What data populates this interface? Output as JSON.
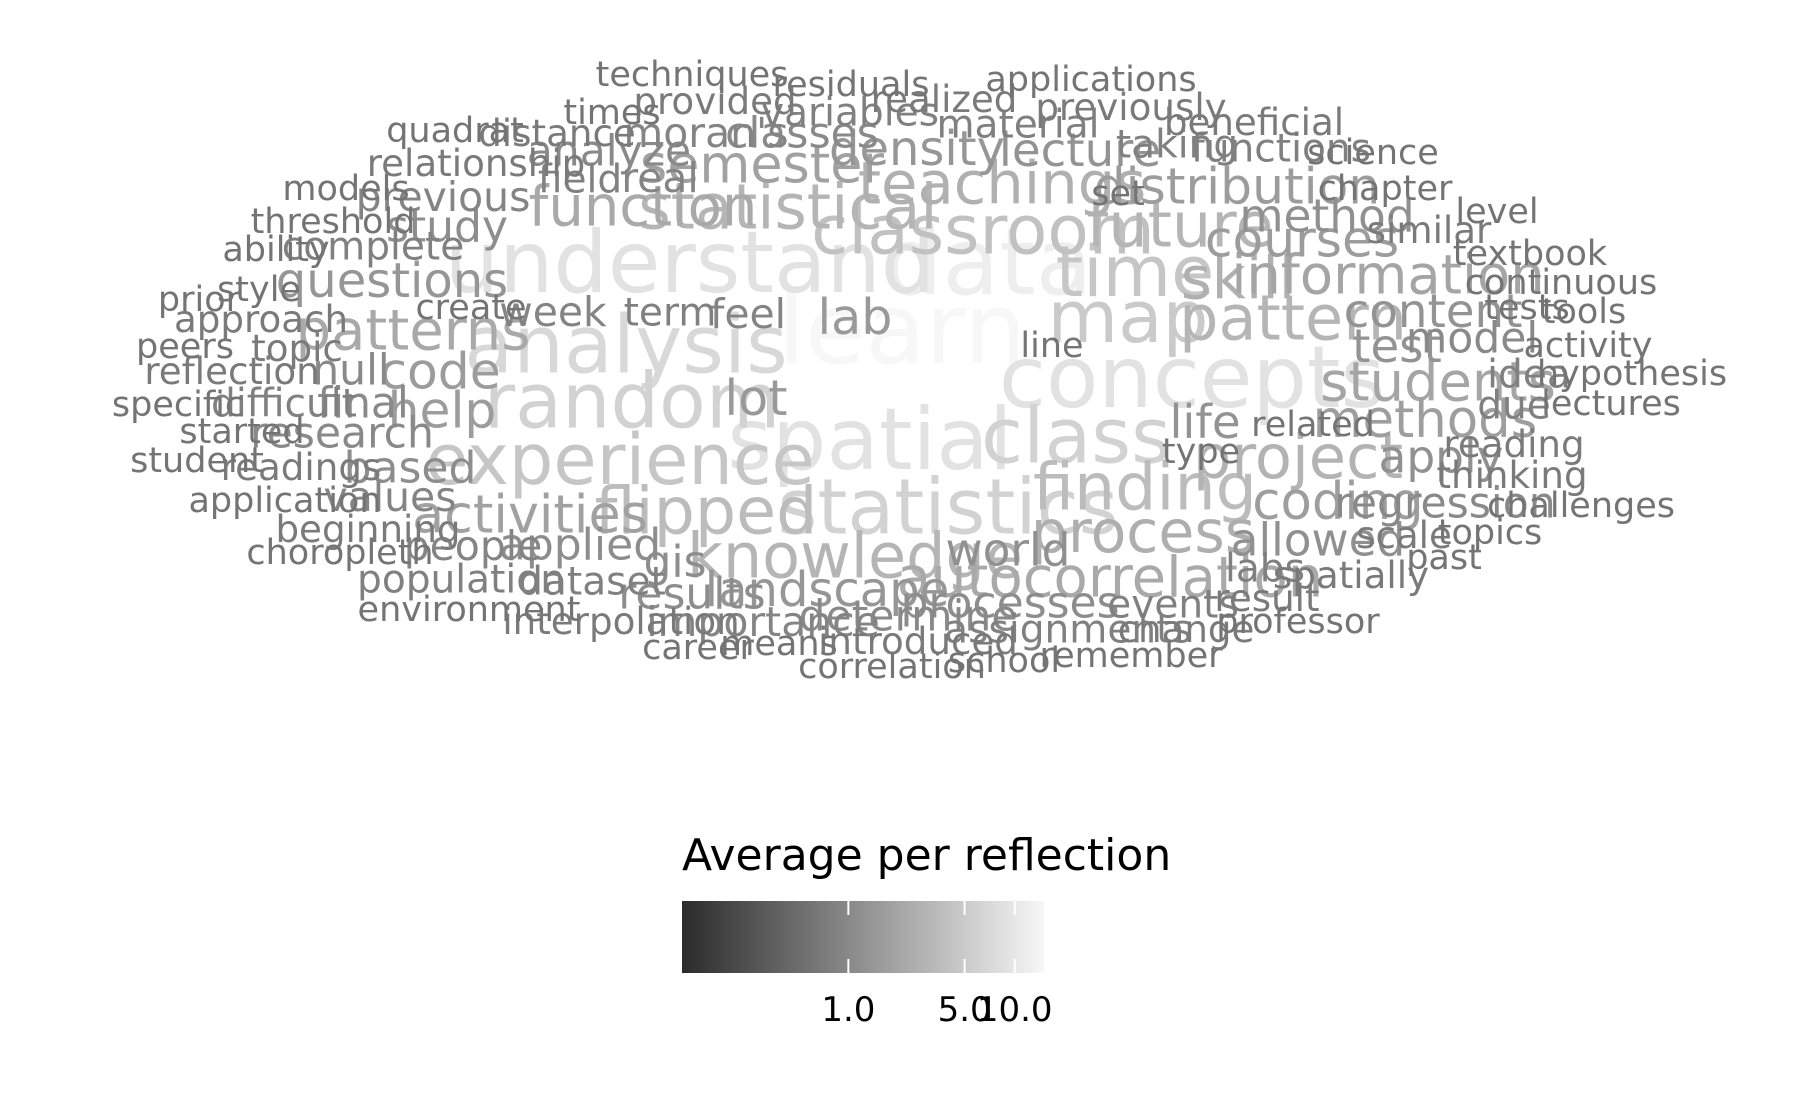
{
  "chart_data": {
    "type": "wordcloud",
    "legend": {
      "title": "Average per reflection",
      "scale": "log",
      "range": [
        0.1,
        15
      ],
      "colors": {
        "low": "#2b2b2b",
        "high": "#f7f7f7"
      },
      "ticks": [
        {
          "value": 1.0,
          "label": "1.0"
        },
        {
          "value": 5.0,
          "label": "5.0"
        },
        {
          "value": 10.0,
          "label": "10.0"
        }
      ]
    },
    "words": [
      {
        "text": "learn",
        "value": 15
      },
      {
        "text": "data",
        "value": 12
      },
      {
        "text": "understand",
        "value": 9
      },
      {
        "text": "concepts",
        "value": 9
      },
      {
        "text": "spatial",
        "value": 9
      },
      {
        "text": "analysis",
        "value": 7
      },
      {
        "text": "random",
        "value": 6
      },
      {
        "text": "class",
        "value": 6
      },
      {
        "text": "statistics",
        "value": 6
      },
      {
        "text": "map",
        "value": 5
      },
      {
        "text": "experience",
        "value": 4.5
      },
      {
        "text": "time",
        "value": 4.5
      },
      {
        "text": "classroom",
        "value": 4
      },
      {
        "text": "finding",
        "value": 3.5
      },
      {
        "text": "flipped",
        "value": 3.5
      },
      {
        "text": "knowledge",
        "value": 3
      },
      {
        "text": "pattern",
        "value": 3
      },
      {
        "text": "future",
        "value": 3
      },
      {
        "text": "statistical",
        "value": 3
      },
      {
        "text": "project",
        "value": 2.8
      },
      {
        "text": "skill",
        "value": 2.6
      },
      {
        "text": "teachings",
        "value": 2.6
      },
      {
        "text": "process",
        "value": 2.5
      },
      {
        "text": "function",
        "value": 2.2
      },
      {
        "text": "patterns",
        "value": 2.2
      },
      {
        "text": "autocorrelation",
        "value": 2.2
      },
      {
        "text": "information",
        "value": 2
      },
      {
        "text": "students",
        "value": 2
      },
      {
        "text": "activities",
        "value": 1.8
      },
      {
        "text": "semester",
        "value": 1.8
      },
      {
        "text": "methods",
        "value": 1.7
      },
      {
        "text": "coding",
        "value": 1.7
      },
      {
        "text": "help",
        "value": 1.6
      },
      {
        "text": "code",
        "value": 1.6
      },
      {
        "text": "distribution",
        "value": 1.6
      },
      {
        "text": "courses",
        "value": 1.6
      },
      {
        "text": "lab",
        "value": 1.5
      },
      {
        "text": "lot",
        "value": 1.5
      },
      {
        "text": "landscape",
        "value": 1.4
      },
      {
        "text": "questions",
        "value": 1.4
      },
      {
        "text": "density",
        "value": 1.4
      },
      {
        "text": "lecture",
        "value": 1.3
      },
      {
        "text": "content",
        "value": 1.3
      },
      {
        "text": "test",
        "value": 1.3
      },
      {
        "text": "life",
        "value": 1.3
      },
      {
        "text": "apply",
        "value": 1.2
      },
      {
        "text": "allowed",
        "value": 1.2
      },
      {
        "text": "method",
        "value": 1.2
      },
      {
        "text": "world",
        "value": 1.2
      },
      {
        "text": "applied",
        "value": 1.1
      },
      {
        "text": "gis",
        "value": 1.1
      },
      {
        "text": "results",
        "value": 1.1
      },
      {
        "text": "study",
        "value": 1.1
      },
      {
        "text": "based",
        "value": 1.1
      },
      {
        "text": "processes",
        "value": 1.1
      },
      {
        "text": "model",
        "value": 1.0
      },
      {
        "text": "regression",
        "value": 1.0
      },
      {
        "text": "determine",
        "value": 1.0
      },
      {
        "text": "null",
        "value": 1.0
      },
      {
        "text": "final",
        "value": 1.0
      },
      {
        "text": "research",
        "value": 1.0
      },
      {
        "text": "analyze",
        "value": 1.0
      },
      {
        "text": "classes",
        "value": 1.0
      },
      {
        "text": "real",
        "value": 0.9
      },
      {
        "text": "feel",
        "value": 0.9
      },
      {
        "text": "importance",
        "value": 0.9
      },
      {
        "text": "previous",
        "value": 0.9
      },
      {
        "text": "values",
        "value": 0.9
      },
      {
        "text": "people",
        "value": 0.9
      },
      {
        "text": "week",
        "value": 0.9
      },
      {
        "text": "moran's",
        "value": 0.9
      },
      {
        "text": "complete",
        "value": 0.8
      },
      {
        "text": "difficult",
        "value": 0.8
      },
      {
        "text": "population",
        "value": 0.8
      },
      {
        "text": "dataset",
        "value": 0.8
      },
      {
        "text": "field",
        "value": 0.8
      },
      {
        "text": "variables",
        "value": 0.8
      },
      {
        "text": "material",
        "value": 0.8
      },
      {
        "text": "taking",
        "value": 0.8
      },
      {
        "text": "functions",
        "value": 0.8
      },
      {
        "text": "due",
        "value": 0.8
      },
      {
        "text": "idea",
        "value": 0.8
      },
      {
        "text": "assignments",
        "value": 0.8
      },
      {
        "text": "events",
        "value": 0.8
      },
      {
        "text": "labs",
        "value": 0.8
      },
      {
        "text": "term",
        "value": 0.8
      },
      {
        "text": "readings",
        "value": 0.7
      },
      {
        "text": "topic",
        "value": 0.7
      },
      {
        "text": "approach",
        "value": 0.7
      },
      {
        "text": "relationship",
        "value": 0.7
      },
      {
        "text": "distance",
        "value": 0.7
      },
      {
        "text": "reflection",
        "value": 0.7
      },
      {
        "text": "beginning",
        "value": 0.7
      },
      {
        "text": "interpolation",
        "value": 0.7
      },
      {
        "text": "introduced",
        "value": 0.7
      },
      {
        "text": "change",
        "value": 0.7
      },
      {
        "text": "scale",
        "value": 0.7
      },
      {
        "text": "reading",
        "value": 0.7
      },
      {
        "text": "thinking",
        "value": 0.7
      },
      {
        "text": "similar",
        "value": 0.7
      },
      {
        "text": "previously",
        "value": 0.7
      },
      {
        "text": "realized",
        "value": 0.7
      },
      {
        "text": "provided",
        "value": 0.7
      },
      {
        "text": "beneficial",
        "value": 0.7
      },
      {
        "text": "spatially",
        "value": 0.7
      },
      {
        "text": "result",
        "value": 0.7
      },
      {
        "text": "textbook",
        "value": 0.6
      },
      {
        "text": "continuous",
        "value": 0.6
      },
      {
        "text": "tests",
        "value": 0.6
      },
      {
        "text": "activity",
        "value": 0.6
      },
      {
        "text": "hypothesis",
        "value": 0.6
      },
      {
        "text": "lectures",
        "value": 0.6
      },
      {
        "text": "related",
        "value": 0.6
      },
      {
        "text": "chapter",
        "value": 0.6
      },
      {
        "text": "residuals",
        "value": 0.6
      },
      {
        "text": "applications",
        "value": 0.6
      },
      {
        "text": "techniques",
        "value": 0.6
      },
      {
        "text": "times",
        "value": 0.6
      },
      {
        "text": "quadrat",
        "value": 0.6
      },
      {
        "text": "models",
        "value": 0.6
      },
      {
        "text": "threshold",
        "value": 0.6
      },
      {
        "text": "ability",
        "value": 0.6
      },
      {
        "text": "style",
        "value": 0.6
      },
      {
        "text": "prior",
        "value": 0.6
      },
      {
        "text": "peers",
        "value": 0.6
      },
      {
        "text": "specific",
        "value": 0.6
      },
      {
        "text": "started",
        "value": 0.6
      },
      {
        "text": "student",
        "value": 0.6
      },
      {
        "text": "application",
        "value": 0.6
      },
      {
        "text": "choropleth",
        "value": 0.6
      },
      {
        "text": "environment",
        "value": 0.6
      },
      {
        "text": "career",
        "value": 0.6
      },
      {
        "text": "means",
        "value": 0.6
      },
      {
        "text": "correlation",
        "value": 0.6
      },
      {
        "text": "school",
        "value": 0.6
      },
      {
        "text": "remember",
        "value": 0.6
      },
      {
        "text": "professor",
        "value": 0.6
      },
      {
        "text": "past",
        "value": 0.6
      },
      {
        "text": "topics",
        "value": 0.6
      },
      {
        "text": "challenges",
        "value": 0.6
      },
      {
        "text": "create",
        "value": 0.6
      },
      {
        "text": "line",
        "value": 0.6
      },
      {
        "text": "set",
        "value": 0.6
      },
      {
        "text": "type",
        "value": 0.6
      },
      {
        "text": "science",
        "value": 0.6
      },
      {
        "text": "level",
        "value": 0.6
      },
      {
        "text": "tools",
        "value": 0.6
      }
    ]
  }
}
